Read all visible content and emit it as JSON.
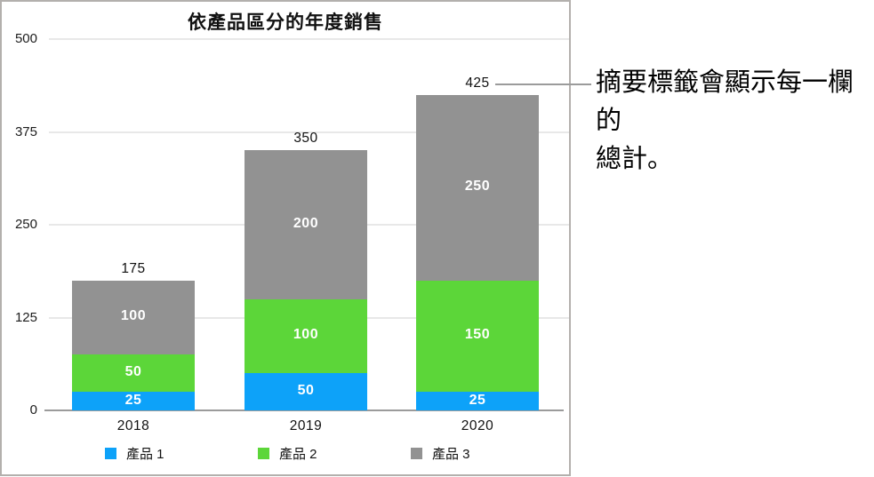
{
  "chart_data": {
    "type": "bar",
    "stacked": true,
    "title": "依產品區分的年度銷售",
    "categories": [
      "2018",
      "2019",
      "2020"
    ],
    "series": [
      {
        "name": "產品 1",
        "color": "#0da2f9",
        "values": [
          25,
          50,
          25
        ]
      },
      {
        "name": "產品 2",
        "color": "#5cd639",
        "values": [
          50,
          100,
          150
        ]
      },
      {
        "name": "產品 3",
        "color": "#929292",
        "values": [
          100,
          200,
          250
        ]
      }
    ],
    "totals": [
      175,
      350,
      425
    ],
    "xlabel": "",
    "ylabel": "",
    "ylim": [
      0,
      500
    ],
    "yticks": [
      0,
      125,
      250,
      375,
      500
    ],
    "grid": true,
    "legend_position": "bottom",
    "value_labels": "inside-segments-white",
    "total_labels": "above-bars"
  },
  "callout": {
    "lines": [
      "摘要標籤會顯示每一欄的",
      "總計。"
    ]
  },
  "colors": {
    "background": "#ffffff",
    "panel_border": "#b3b0ad",
    "gridline": "#e8e8e8",
    "axis_line": "#9b9b9b",
    "leader_line": "#9b9b9b",
    "label_text": "#111111",
    "segment_label": "#ffffff"
  }
}
